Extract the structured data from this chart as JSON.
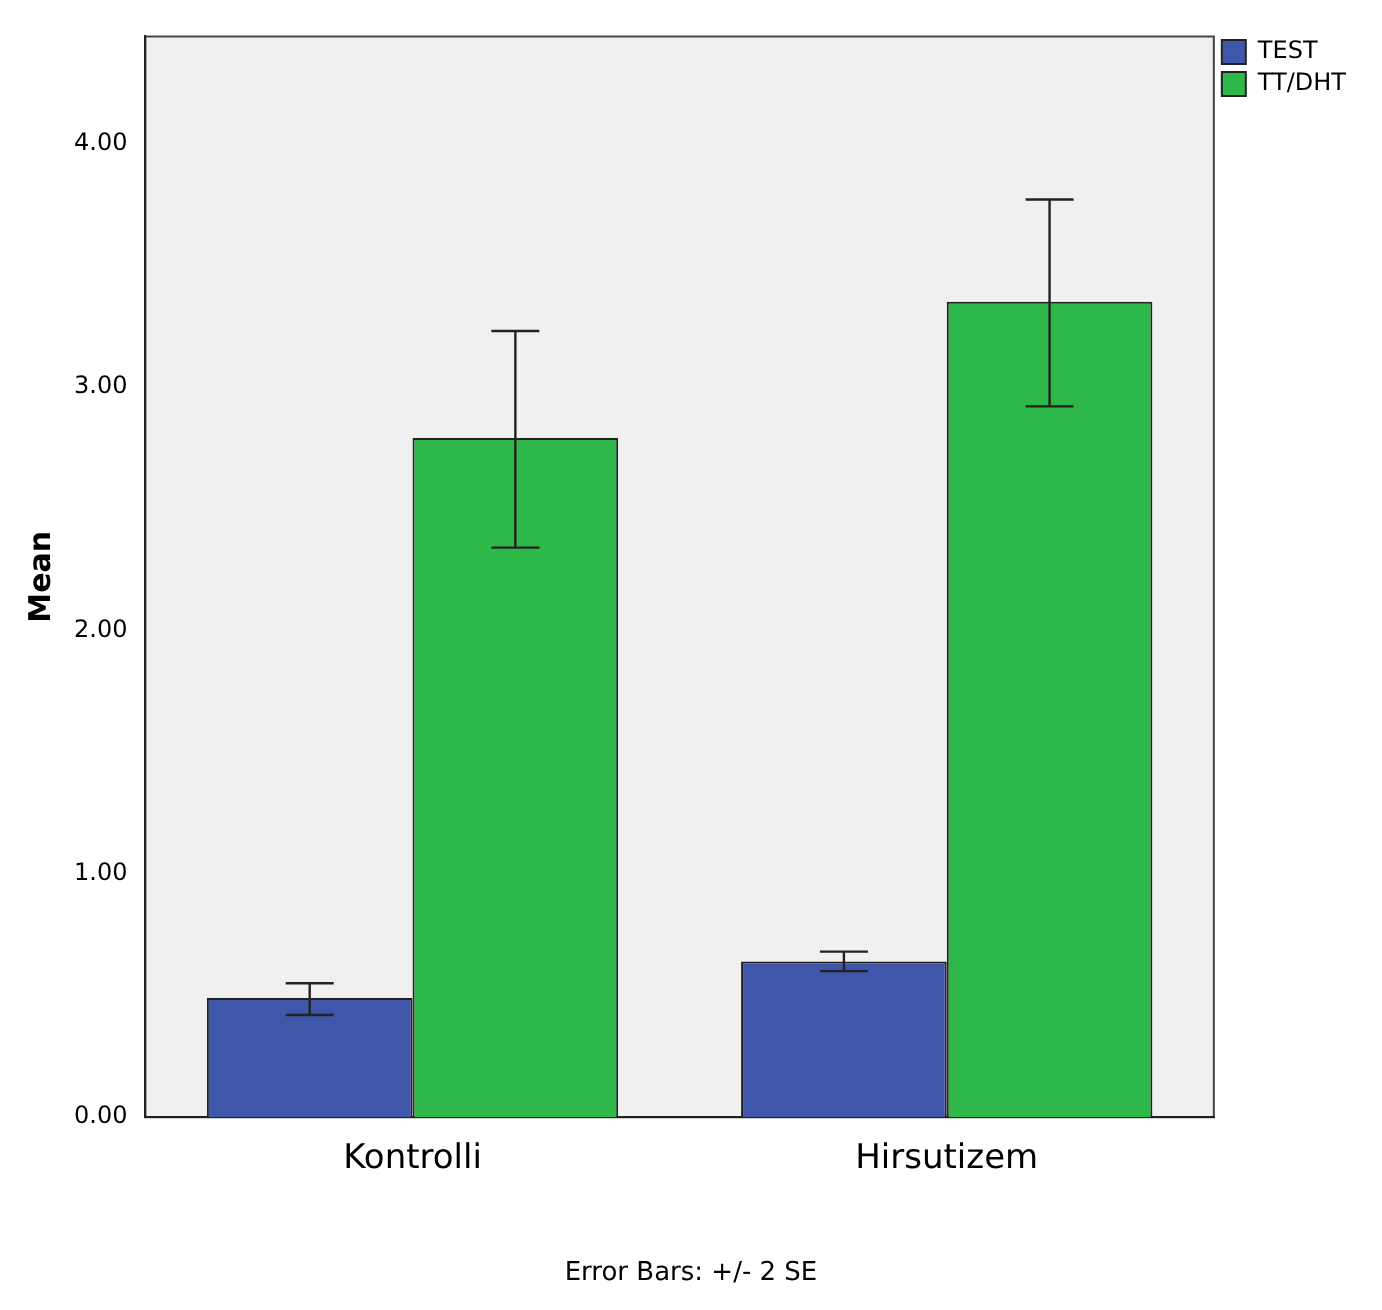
{
  "chart_data": {
    "type": "bar",
    "ylabel": "Mean",
    "categories": [
      "Kontrolli",
      "Hirsutizem"
    ],
    "series": [
      {
        "name": "TEST",
        "color": "#3f57aa",
        "values": [
          0.49,
          0.64
        ],
        "errors": [
          [
            0.42,
            0.55
          ],
          [
            0.6,
            0.68
          ]
        ]
      },
      {
        "name": "TT/DHT",
        "color": "#2fb84a",
        "values": [
          2.79,
          3.35
        ],
        "errors": [
          [
            2.34,
            3.23
          ],
          [
            2.92,
            3.77
          ]
        ]
      }
    ],
    "ylim": [
      0,
      4.44
    ],
    "yticks": [
      {
        "value": 0,
        "label": "0.00"
      },
      {
        "value": 1,
        "label": "1.00"
      },
      {
        "value": 2,
        "label": "2.00"
      },
      {
        "value": 3,
        "label": "3.00"
      },
      {
        "value": 4,
        "label": "4.00"
      }
    ],
    "grid": false,
    "legend": "top right",
    "annotations": [
      "Error Bars: +/- 2 SE"
    ]
  }
}
